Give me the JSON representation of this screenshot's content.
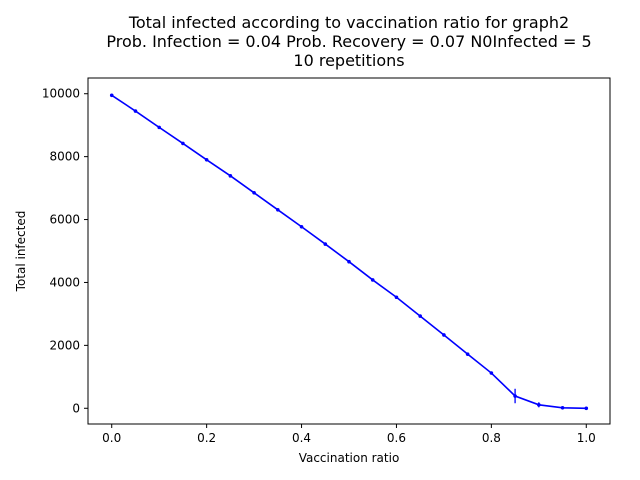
{
  "chart_data": {
    "type": "line",
    "title_lines": [
      "Total infected according to vaccination ratio for graph2",
      "Prob. Infection = 0.04   Prob. Recovery = 0.07  N0Infected = 5",
      "10 repetitions"
    ],
    "xlabel": "Vaccination ratio",
    "ylabel": "Total infected",
    "xlim": [
      -0.05,
      1.05
    ],
    "ylim": [
      -500,
      10500
    ],
    "xticks": [
      0.0,
      0.2,
      0.4,
      0.6,
      0.8,
      1.0
    ],
    "xtick_labels": [
      "0.0",
      "0.2",
      "0.4",
      "0.6",
      "0.8",
      "1.0"
    ],
    "yticks": [
      0,
      2000,
      4000,
      6000,
      8000,
      10000
    ],
    "ytick_labels": [
      "0",
      "2000",
      "4000",
      "6000",
      "8000",
      "10000"
    ],
    "grid": false,
    "series": [
      {
        "color": "#0000ff",
        "x": [
          0.0,
          0.05,
          0.1,
          0.15,
          0.2,
          0.25,
          0.3,
          0.35,
          0.4,
          0.45,
          0.5,
          0.55,
          0.6,
          0.65,
          0.7,
          0.75,
          0.8,
          0.85,
          0.9,
          0.95,
          1.0
        ],
        "y": [
          9950,
          9450,
          8930,
          8420,
          7900,
          7390,
          6850,
          6310,
          5770,
          5220,
          4660,
          4080,
          3530,
          2930,
          2330,
          1720,
          1120,
          390,
          110,
          15,
          0
        ],
        "yerr": [
          15,
          15,
          15,
          15,
          15,
          15,
          15,
          15,
          15,
          15,
          20,
          20,
          20,
          25,
          25,
          30,
          40,
          230,
          80,
          15,
          0
        ]
      }
    ]
  }
}
